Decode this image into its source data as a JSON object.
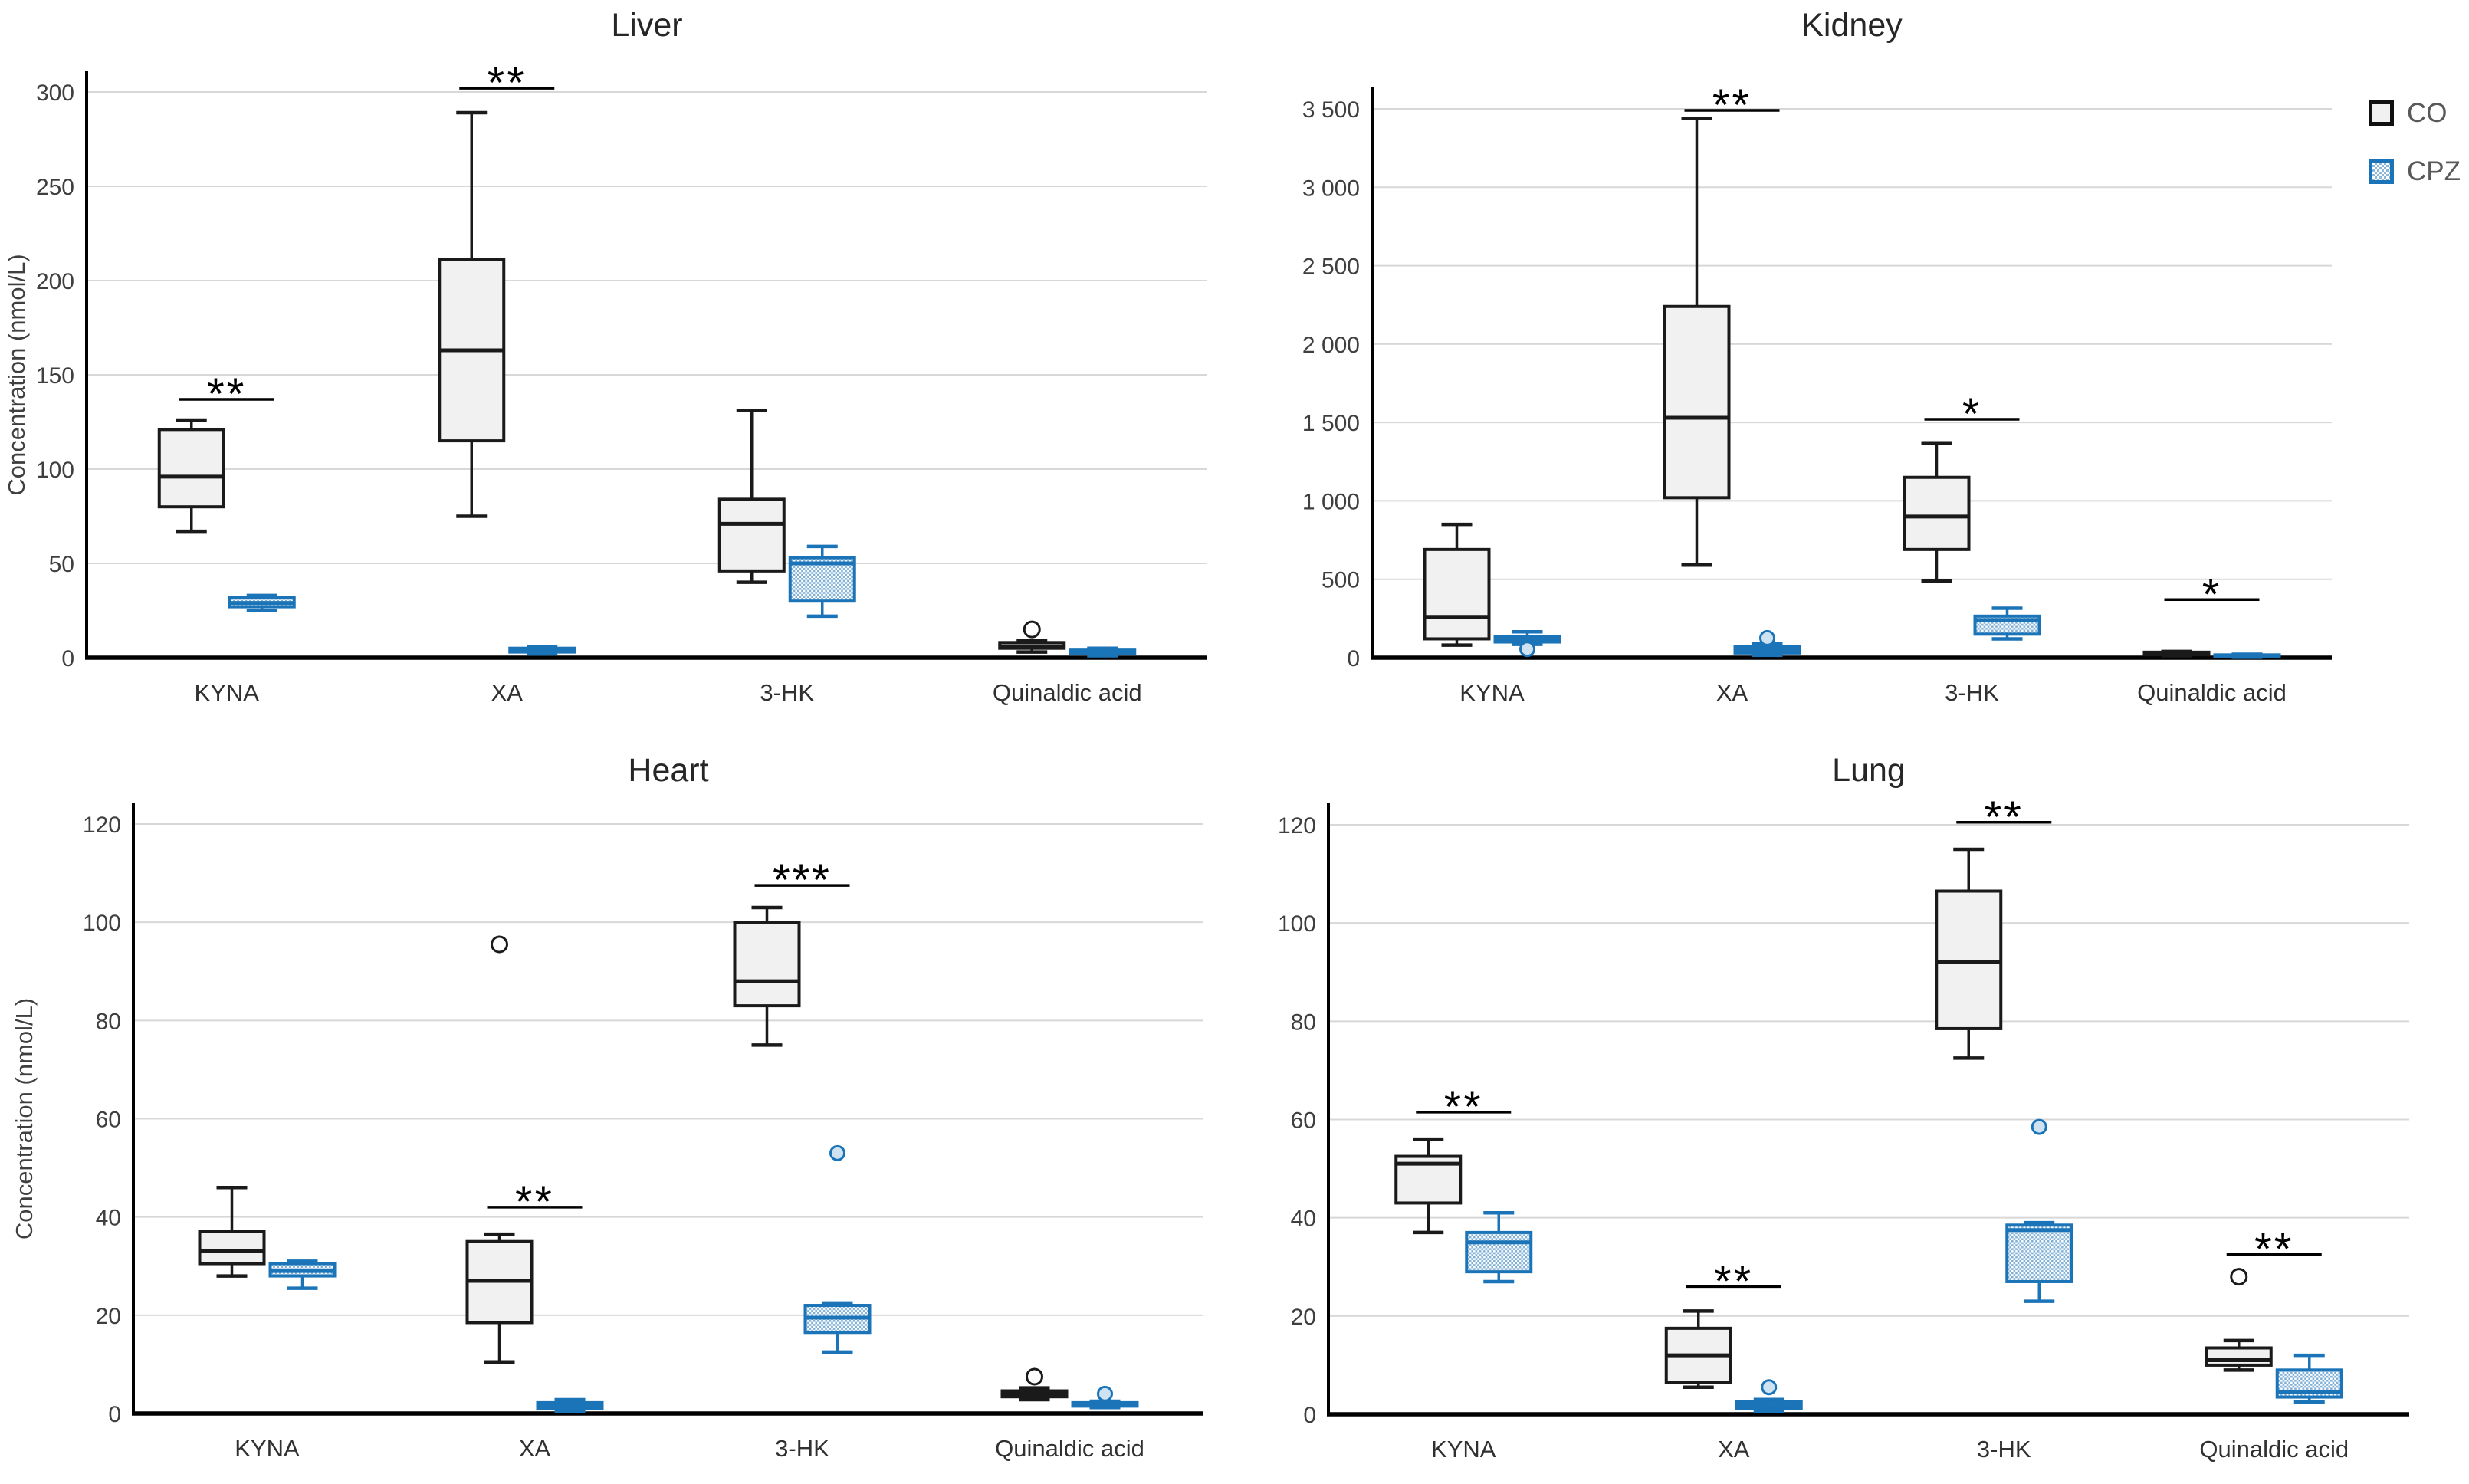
{
  "legend": {
    "items": [
      {
        "label": "CO",
        "style": "co"
      },
      {
        "label": "CPZ",
        "style": "cpz"
      }
    ]
  },
  "colors": {
    "co_fill": "#f1f1f1",
    "co_stroke": "#1a1a1a",
    "cpz_stroke": "#1b74b8",
    "cpz_pattern_blue": "#7fb0d8",
    "cpz_outlier_fill": "#cfe2f1",
    "gridline": "#d8d8d8",
    "axis": "#000000",
    "tick_text": "#3f3f3f",
    "category_text": "#303030",
    "title_text": "#262626",
    "sig_text": "#000000"
  },
  "chart_data": [
    {
      "type": "box",
      "title": "Liver",
      "ylabel": "Concentration (nmol/L)",
      "ylim": [
        0,
        300
      ],
      "grid": true,
      "legend_position": "top-right",
      "yticks": [
        {
          "v": 0,
          "label": "0"
        },
        {
          "v": 50,
          "label": "50"
        },
        {
          "v": 100,
          "label": "100"
        },
        {
          "v": 150,
          "label": "150"
        },
        {
          "v": 200,
          "label": "200"
        },
        {
          "v": 250,
          "label": "250"
        },
        {
          "v": 300,
          "label": "300"
        }
      ],
      "categories": [
        "KYNA",
        "XA",
        "3-HK",
        "Quinaldic acid"
      ],
      "series": [
        {
          "name": "CO",
          "boxes": [
            {
              "min": 67,
              "q1": 80,
              "median": 96,
              "q3": 121,
              "max": 126,
              "outliers": []
            },
            {
              "min": 75,
              "q1": 115,
              "median": 163,
              "q3": 211,
              "max": 289,
              "outliers": []
            },
            {
              "min": 40,
              "q1": 46,
              "median": 71,
              "q3": 84,
              "max": 131,
              "outliers": []
            },
            {
              "min": 3,
              "q1": 5,
              "median": 6,
              "q3": 8,
              "max": 9,
              "outliers": [
                15
              ]
            }
          ]
        },
        {
          "name": "CPZ",
          "boxes": [
            {
              "min": 25,
              "q1": 27,
              "median": 29,
              "q3": 32,
              "max": 33,
              "outliers": []
            },
            {
              "min": 2,
              "q1": 3,
              "median": 4,
              "q3": 5,
              "max": 6,
              "outliers": []
            },
            {
              "min": 22,
              "q1": 30,
              "median": 50,
              "q3": 53,
              "max": 59,
              "outliers": []
            },
            {
              "min": 1,
              "q1": 2,
              "median": 3,
              "q3": 4,
              "max": 5,
              "outliers": []
            }
          ]
        }
      ],
      "significance": [
        {
          "category": "KYNA",
          "label": "**",
          "line_y": 137
        },
        {
          "category": "XA",
          "label": "**",
          "line_y": 302
        }
      ]
    },
    {
      "type": "box",
      "title": "Kidney",
      "ylabel": "",
      "ylim": [
        0,
        3500
      ],
      "grid": true,
      "yticks": [
        {
          "v": 0,
          "label": "0"
        },
        {
          "v": 500,
          "label": "500"
        },
        {
          "v": 1000,
          "label": "1 000"
        },
        {
          "v": 1500,
          "label": "1 500"
        },
        {
          "v": 2000,
          "label": "2 000"
        },
        {
          "v": 2500,
          "label": "2 500"
        },
        {
          "v": 3000,
          "label": "3 000"
        },
        {
          "v": 3500,
          "label": "3 500"
        }
      ],
      "categories": [
        "KYNA",
        "XA",
        "3-HK",
        "Quinaldic acid"
      ],
      "series": [
        {
          "name": "CO",
          "boxes": [
            {
              "min": 80,
              "q1": 120,
              "median": 260,
              "q3": 690,
              "max": 850,
              "outliers": []
            },
            {
              "min": 590,
              "q1": 1020,
              "median": 1530,
              "q3": 2240,
              "max": 3440,
              "outliers": []
            },
            {
              "min": 490,
              "q1": 690,
              "median": 900,
              "q3": 1150,
              "max": 1370,
              "outliers": []
            },
            {
              "min": 12,
              "q1": 18,
              "median": 25,
              "q3": 35,
              "max": 40,
              "outliers": []
            }
          ]
        },
        {
          "name": "CPZ",
          "boxes": [
            {
              "min": 85,
              "q1": 100,
              "median": 115,
              "q3": 135,
              "max": 165,
              "outliers": [
                55
              ]
            },
            {
              "min": 15,
              "q1": 30,
              "median": 50,
              "q3": 70,
              "max": 90,
              "outliers": [
                125
              ]
            },
            {
              "min": 120,
              "q1": 150,
              "median": 240,
              "q3": 265,
              "max": 315,
              "outliers": []
            },
            {
              "min": 3,
              "q1": 5,
              "median": 10,
              "q3": 18,
              "max": 22,
              "outliers": []
            }
          ]
        }
      ],
      "significance": [
        {
          "category": "XA",
          "label": "**",
          "line_y": 3490
        },
        {
          "category": "3-HK",
          "label": "*",
          "line_y": 1520
        },
        {
          "category": "Quinaldic acid",
          "label": "*",
          "line_y": 370
        }
      ]
    },
    {
      "type": "box",
      "title": "Heart",
      "ylabel": "Concentration (nmol/L)",
      "ylim": [
        0,
        120
      ],
      "grid": true,
      "yticks": [
        {
          "v": 0,
          "label": "0"
        },
        {
          "v": 20,
          "label": "20"
        },
        {
          "v": 40,
          "label": "40"
        },
        {
          "v": 60,
          "label": "60"
        },
        {
          "v": 80,
          "label": "80"
        },
        {
          "v": 100,
          "label": "100"
        },
        {
          "v": 120,
          "label": "120"
        }
      ],
      "categories": [
        "KYNA",
        "XA",
        "3-HK",
        "Quinaldic acid"
      ],
      "series": [
        {
          "name": "CO",
          "boxes": [
            {
              "min": 28,
              "q1": 30.5,
              "median": 33,
              "q3": 37,
              "max": 46,
              "outliers": []
            },
            {
              "min": 10.5,
              "q1": 18.5,
              "median": 27,
              "q3": 35,
              "max": 36.5,
              "outliers": [
                95.5
              ]
            },
            {
              "min": 75,
              "q1": 83,
              "median": 88,
              "q3": 100,
              "max": 103,
              "outliers": []
            },
            {
              "min": 2.8,
              "q1": 3.4,
              "median": 4,
              "q3": 4.6,
              "max": 5.2,
              "outliers": [
                7.5
              ]
            }
          ]
        },
        {
          "name": "CPZ",
          "boxes": [
            {
              "min": 25.5,
              "q1": 28,
              "median": 29,
              "q3": 30.5,
              "max": 31,
              "outliers": []
            },
            {
              "min": 0.5,
              "q1": 1,
              "median": 1.5,
              "q3": 2.2,
              "max": 2.8,
              "outliers": []
            },
            {
              "min": 12.5,
              "q1": 16.5,
              "median": 19.5,
              "q3": 22,
              "max": 22.5,
              "outliers": [
                53
              ]
            },
            {
              "min": 1.2,
              "q1": 1.5,
              "median": 1.8,
              "q3": 2.2,
              "max": 2.5,
              "outliers": [
                4
              ]
            }
          ]
        }
      ],
      "significance": [
        {
          "category": "XA",
          "label": "**",
          "line_y": 42
        },
        {
          "category": "3-HK",
          "label": "***",
          "line_y": 107.5
        }
      ]
    },
    {
      "type": "box",
      "title": "Lung",
      "ylabel": "",
      "ylim": [
        0,
        120
      ],
      "grid": true,
      "yticks": [
        {
          "v": 0,
          "label": "0"
        },
        {
          "v": 20,
          "label": "20"
        },
        {
          "v": 40,
          "label": "40"
        },
        {
          "v": 60,
          "label": "60"
        },
        {
          "v": 80,
          "label": "80"
        },
        {
          "v": 100,
          "label": "100"
        },
        {
          "v": 120,
          "label": "120"
        }
      ],
      "categories": [
        "KYNA",
        "XA",
        "3-HK",
        "Quinaldic acid"
      ],
      "series": [
        {
          "name": "CO",
          "boxes": [
            {
              "min": 37,
              "q1": 43,
              "median": 51,
              "q3": 52.5,
              "max": 56,
              "outliers": []
            },
            {
              "min": 5.5,
              "q1": 6.5,
              "median": 12,
              "q3": 17.5,
              "max": 21,
              "outliers": []
            },
            {
              "min": 72.5,
              "q1": 78.5,
              "median": 92,
              "q3": 106.5,
              "max": 115,
              "outliers": []
            },
            {
              "min": 9,
              "q1": 10,
              "median": 11,
              "q3": 13.5,
              "max": 15,
              "outliers": [
                28
              ]
            }
          ]
        },
        {
          "name": "CPZ",
          "boxes": [
            {
              "min": 27,
              "q1": 29,
              "median": 35,
              "q3": 37,
              "max": 41,
              "outliers": []
            },
            {
              "min": 0.5,
              "q1": 1.2,
              "median": 1.8,
              "q3": 2.5,
              "max": 3,
              "outliers": [
                5.5
              ]
            },
            {
              "min": 23,
              "q1": 27,
              "median": 37.5,
              "q3": 38.5,
              "max": 39,
              "outliers": [
                58.5
              ]
            },
            {
              "min": 2.5,
              "q1": 3.5,
              "median": 4.5,
              "q3": 9,
              "max": 12,
              "outliers": []
            }
          ]
        }
      ],
      "significance": [
        {
          "category": "KYNA",
          "label": "**",
          "line_y": 61.5
        },
        {
          "category": "XA",
          "label": "**",
          "line_y": 26
        },
        {
          "category": "3-HK",
          "label": "**",
          "line_y": 120.5
        },
        {
          "category": "Quinaldic acid",
          "label": "**",
          "line_y": 32.5
        }
      ]
    }
  ]
}
